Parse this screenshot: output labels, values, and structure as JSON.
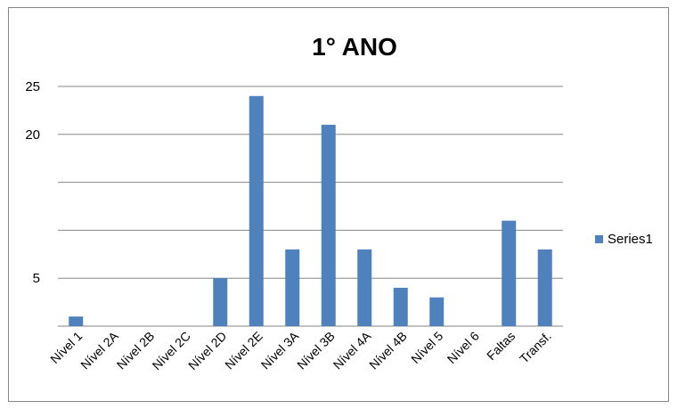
{
  "chart_data": {
    "type": "bar",
    "title": "1° ANO",
    "xlabel": "",
    "ylabel": "",
    "categories": [
      "Nível 1",
      "Nível 2A",
      "Nível 2B",
      "Nível 2C",
      "Nível 2D",
      "Nível 2E",
      "Nível 3A",
      "Nível 3B",
      "Nível 4A",
      "Nível 4B",
      "Nível 5",
      "Nível 6",
      "Faltas",
      "Transf."
    ],
    "series": [
      {
        "name": "Series1",
        "values": [
          1,
          0,
          0,
          0,
          5,
          24,
          8,
          21,
          8,
          4,
          3,
          0,
          11,
          8
        ]
      }
    ],
    "y_ticks_shown": [
      "5",
      "20",
      "25"
    ],
    "y_gridlines": [
      0,
      5,
      10,
      15,
      20,
      25
    ],
    "ylim": [
      0,
      25
    ],
    "grid": true,
    "legend": "right",
    "bar_color": "#4f81bd"
  }
}
